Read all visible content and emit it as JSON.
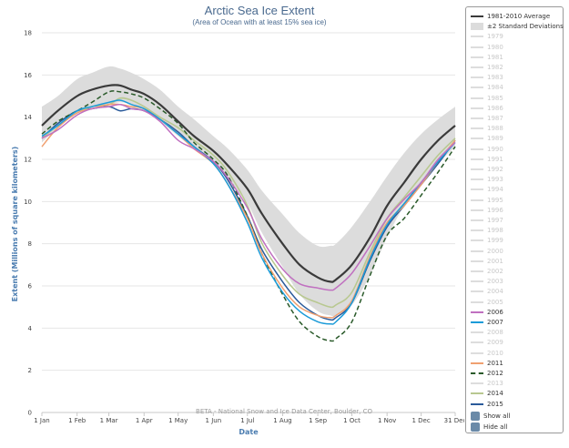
{
  "chart_data": {
    "type": "line",
    "title": "Arctic Sea Ice Extent",
    "subtitle": "(Area of Ocean with at least 15% sea ice)",
    "xlabel": "Date",
    "ylabel": "Extent (Millions of square kilometers)",
    "credit": "BETA - National Snow and Ice Data Center, Boulder, CO",
    "x_ticks": [
      "1 Jan",
      "1 Feb",
      "1 Mar",
      "1 Apr",
      "1 May",
      "1 Jun",
      "1 Jul",
      "1 Aug",
      "1 Sep",
      "1 Oct",
      "1 Nov",
      "1 Dec",
      "31 Dec"
    ],
    "x_tick_days": [
      1,
      32,
      60,
      91,
      121,
      152,
      182,
      213,
      244,
      274,
      305,
      335,
      365
    ],
    "y_ticks": [
      0,
      2,
      4,
      6,
      8,
      10,
      12,
      14,
      16,
      18
    ],
    "xlim": [
      1,
      365
    ],
    "ylim": [
      0,
      18
    ],
    "grid": true,
    "legend_position": "right",
    "band": {
      "name": "±2 Standard Deviations",
      "color": "#dcdcdc",
      "x": [
        1,
        15,
        32,
        45,
        60,
        70,
        80,
        91,
        105,
        121,
        135,
        152,
        165,
        182,
        195,
        213,
        228,
        244,
        255,
        260,
        274,
        290,
        305,
        320,
        335,
        350,
        365
      ],
      "lower": [
        12.8,
        13.5,
        14.2,
        14.5,
        14.6,
        14.7,
        14.6,
        14.3,
        13.8,
        13.1,
        12.5,
        11.8,
        11.0,
        9.9,
        8.5,
        6.9,
        5.6,
        4.8,
        4.6,
        4.6,
        5.1,
        6.5,
        8.3,
        9.8,
        10.9,
        11.8,
        12.6
      ],
      "upper": [
        14.5,
        15.0,
        15.8,
        16.1,
        16.4,
        16.3,
        16.1,
        15.8,
        15.3,
        14.5,
        13.9,
        13.1,
        12.5,
        11.5,
        10.5,
        9.4,
        8.5,
        7.9,
        7.9,
        8.0,
        8.8,
        10.0,
        11.2,
        12.3,
        13.2,
        13.9,
        14.5
      ]
    },
    "series": [
      {
        "name": "1981–2010 Average",
        "color": "#3a3a3a",
        "dash": false,
        "width": 2.2,
        "x": [
          1,
          15,
          32,
          45,
          60,
          70,
          80,
          91,
          105,
          121,
          135,
          152,
          165,
          182,
          195,
          213,
          228,
          244,
          255,
          260,
          274,
          290,
          305,
          320,
          335,
          350,
          365
        ],
        "y": [
          13.6,
          14.3,
          15.0,
          15.3,
          15.5,
          15.5,
          15.3,
          15.1,
          14.6,
          13.8,
          13.1,
          12.4,
          11.7,
          10.6,
          9.4,
          8.0,
          7.0,
          6.4,
          6.2,
          6.3,
          7.0,
          8.3,
          9.8,
          10.9,
          12.0,
          12.9,
          13.6
        ]
      },
      {
        "name": "2006",
        "color": "#c070c0",
        "dash": false,
        "width": 1.5,
        "x": [
          1,
          15,
          32,
          45,
          60,
          70,
          80,
          91,
          105,
          121,
          135,
          152,
          165,
          182,
          195,
          213,
          228,
          244,
          255,
          260,
          274,
          290,
          305,
          320,
          335,
          350,
          365
        ],
        "y": [
          13.0,
          13.4,
          14.1,
          14.4,
          14.5,
          14.6,
          14.4,
          14.3,
          13.8,
          12.9,
          12.5,
          11.9,
          11.1,
          9.7,
          8.2,
          6.8,
          6.1,
          5.9,
          5.8,
          5.9,
          6.6,
          7.9,
          9.2,
          10.1,
          10.9,
          12.0,
          12.8
        ]
      },
      {
        "name": "2007",
        "color": "#1b9bd8",
        "dash": false,
        "width": 1.5,
        "x": [
          1,
          15,
          32,
          45,
          60,
          70,
          80,
          91,
          105,
          121,
          135,
          152,
          165,
          182,
          195,
          213,
          228,
          244,
          255,
          260,
          274,
          290,
          305,
          320,
          335,
          350,
          365
        ],
        "y": [
          13.1,
          13.6,
          14.3,
          14.5,
          14.7,
          14.8,
          14.6,
          14.4,
          13.9,
          13.2,
          12.6,
          11.8,
          10.8,
          9.0,
          7.3,
          5.7,
          4.8,
          4.3,
          4.2,
          4.3,
          5.2,
          7.3,
          8.9,
          9.9,
          10.9,
          11.9,
          12.8
        ]
      },
      {
        "name": "2011",
        "color": "#f0a070",
        "dash": false,
        "width": 1.5,
        "x": [
          1,
          15,
          32,
          45,
          60,
          70,
          80,
          91,
          105,
          121,
          135,
          152,
          165,
          182,
          195,
          213,
          228,
          244,
          255,
          260,
          274,
          290,
          305,
          320,
          335,
          350,
          365
        ],
        "y": [
          12.6,
          13.5,
          14.2,
          14.4,
          14.6,
          14.6,
          14.5,
          14.4,
          13.9,
          13.2,
          12.5,
          11.8,
          10.8,
          9.2,
          7.5,
          5.9,
          5.0,
          4.6,
          4.5,
          4.6,
          5.3,
          7.4,
          9.0,
          9.8,
          10.8,
          11.9,
          12.9
        ]
      },
      {
        "name": "2012",
        "color": "#2a5a2a",
        "dash": true,
        "width": 1.5,
        "x": [
          1,
          15,
          32,
          45,
          60,
          70,
          80,
          91,
          105,
          121,
          135,
          152,
          165,
          182,
          195,
          213,
          228,
          244,
          255,
          260,
          274,
          290,
          305,
          320,
          335,
          350,
          365
        ],
        "y": [
          13.2,
          13.8,
          14.3,
          14.7,
          15.2,
          15.2,
          15.1,
          14.9,
          14.4,
          13.7,
          12.8,
          12.0,
          11.2,
          9.3,
          7.5,
          5.6,
          4.3,
          3.6,
          3.4,
          3.5,
          4.3,
          6.5,
          8.4,
          9.2,
          10.3,
          11.4,
          12.6
        ]
      },
      {
        "name": "2014",
        "color": "#b8c890",
        "dash": false,
        "width": 1.6,
        "x": [
          1,
          15,
          32,
          45,
          60,
          70,
          80,
          91,
          105,
          121,
          135,
          152,
          165,
          182,
          195,
          213,
          228,
          244,
          255,
          260,
          274,
          290,
          305,
          320,
          335,
          350,
          365
        ],
        "y": [
          13.0,
          13.6,
          14.2,
          14.5,
          14.6,
          14.9,
          14.8,
          14.5,
          14.0,
          13.5,
          12.9,
          12.2,
          11.4,
          9.8,
          8.0,
          6.5,
          5.6,
          5.2,
          5.0,
          5.1,
          5.7,
          7.6,
          9.2,
          10.2,
          11.2,
          12.2,
          13.0
        ]
      },
      {
        "name": "2015",
        "color": "#2a5a9a",
        "dash": false,
        "width": 1.5,
        "x": [
          1,
          15,
          32,
          45,
          60,
          70,
          80,
          91,
          105,
          121,
          135,
          152,
          165,
          182,
          195,
          213,
          228,
          244,
          255,
          260,
          274,
          290,
          305,
          320,
          335,
          350,
          365
        ],
        "y": [
          13.0,
          13.7,
          14.3,
          14.4,
          14.5,
          14.3,
          14.4,
          14.3,
          13.9,
          13.3,
          12.6,
          11.9,
          11.0,
          9.3,
          7.7,
          6.2,
          5.2,
          4.6,
          4.4,
          4.5,
          5.2,
          7.2,
          8.8,
          9.8,
          10.8,
          11.8,
          12.9
        ]
      }
    ]
  },
  "legend": {
    "items": [
      {
        "label": "1981-2010 Average",
        "color": "#3a3a3a",
        "style": "line",
        "hidden": false
      },
      {
        "label": "±2 Standard Deviations",
        "color": "#dcdcdc",
        "style": "band",
        "hidden": false
      },
      {
        "label": "1979",
        "color": "#dddddd",
        "style": "line",
        "hidden": true
      },
      {
        "label": "1980",
        "color": "#dddddd",
        "style": "line",
        "hidden": true
      },
      {
        "label": "1981",
        "color": "#dddddd",
        "style": "line",
        "hidden": true
      },
      {
        "label": "1982",
        "color": "#dddddd",
        "style": "line",
        "hidden": true
      },
      {
        "label": "1983",
        "color": "#dddddd",
        "style": "line",
        "hidden": true
      },
      {
        "label": "1984",
        "color": "#dddddd",
        "style": "line",
        "hidden": true
      },
      {
        "label": "1985",
        "color": "#dddddd",
        "style": "line",
        "hidden": true
      },
      {
        "label": "1986",
        "color": "#dddddd",
        "style": "line",
        "hidden": true
      },
      {
        "label": "1987",
        "color": "#dddddd",
        "style": "line",
        "hidden": true
      },
      {
        "label": "1988",
        "color": "#dddddd",
        "style": "line",
        "hidden": true
      },
      {
        "label": "1989",
        "color": "#dddddd",
        "style": "line",
        "hidden": true
      },
      {
        "label": "1990",
        "color": "#dddddd",
        "style": "line",
        "hidden": true
      },
      {
        "label": "1991",
        "color": "#dddddd",
        "style": "line",
        "hidden": true
      },
      {
        "label": "1992",
        "color": "#dddddd",
        "style": "line",
        "hidden": true
      },
      {
        "label": "1993",
        "color": "#dddddd",
        "style": "line",
        "hidden": true
      },
      {
        "label": "1994",
        "color": "#dddddd",
        "style": "line",
        "hidden": true
      },
      {
        "label": "1995",
        "color": "#dddddd",
        "style": "line",
        "hidden": true
      },
      {
        "label": "1996",
        "color": "#dddddd",
        "style": "line",
        "hidden": true
      },
      {
        "label": "1997",
        "color": "#dddddd",
        "style": "line",
        "hidden": true
      },
      {
        "label": "1998",
        "color": "#dddddd",
        "style": "line",
        "hidden": true
      },
      {
        "label": "1999",
        "color": "#dddddd",
        "style": "line",
        "hidden": true
      },
      {
        "label": "2000",
        "color": "#dddddd",
        "style": "line",
        "hidden": true
      },
      {
        "label": "2001",
        "color": "#dddddd",
        "style": "line",
        "hidden": true
      },
      {
        "label": "2002",
        "color": "#dddddd",
        "style": "line",
        "hidden": true
      },
      {
        "label": "2003",
        "color": "#dddddd",
        "style": "line",
        "hidden": true
      },
      {
        "label": "2004",
        "color": "#dddddd",
        "style": "line",
        "hidden": true
      },
      {
        "label": "2005",
        "color": "#dddddd",
        "style": "line",
        "hidden": true
      },
      {
        "label": "2006",
        "color": "#c070c0",
        "style": "line",
        "hidden": false
      },
      {
        "label": "2007",
        "color": "#1b9bd8",
        "style": "line",
        "hidden": false
      },
      {
        "label": "2008",
        "color": "#dddddd",
        "style": "line",
        "hidden": true
      },
      {
        "label": "2009",
        "color": "#dddddd",
        "style": "line",
        "hidden": true
      },
      {
        "label": "2010",
        "color": "#dddddd",
        "style": "line",
        "hidden": true
      },
      {
        "label": "2011",
        "color": "#f0a070",
        "style": "line",
        "hidden": false
      },
      {
        "label": "2012",
        "color": "#2a5a2a",
        "style": "dash",
        "hidden": false
      },
      {
        "label": "2013",
        "color": "#dddddd",
        "style": "line",
        "hidden": true
      },
      {
        "label": "2014",
        "color": "#b8c890",
        "style": "line",
        "hidden": false
      },
      {
        "label": "2015",
        "color": "#2a5a9a",
        "style": "line",
        "hidden": false
      }
    ],
    "show_all_label": "Show all",
    "hide_all_label": "Hide all"
  }
}
